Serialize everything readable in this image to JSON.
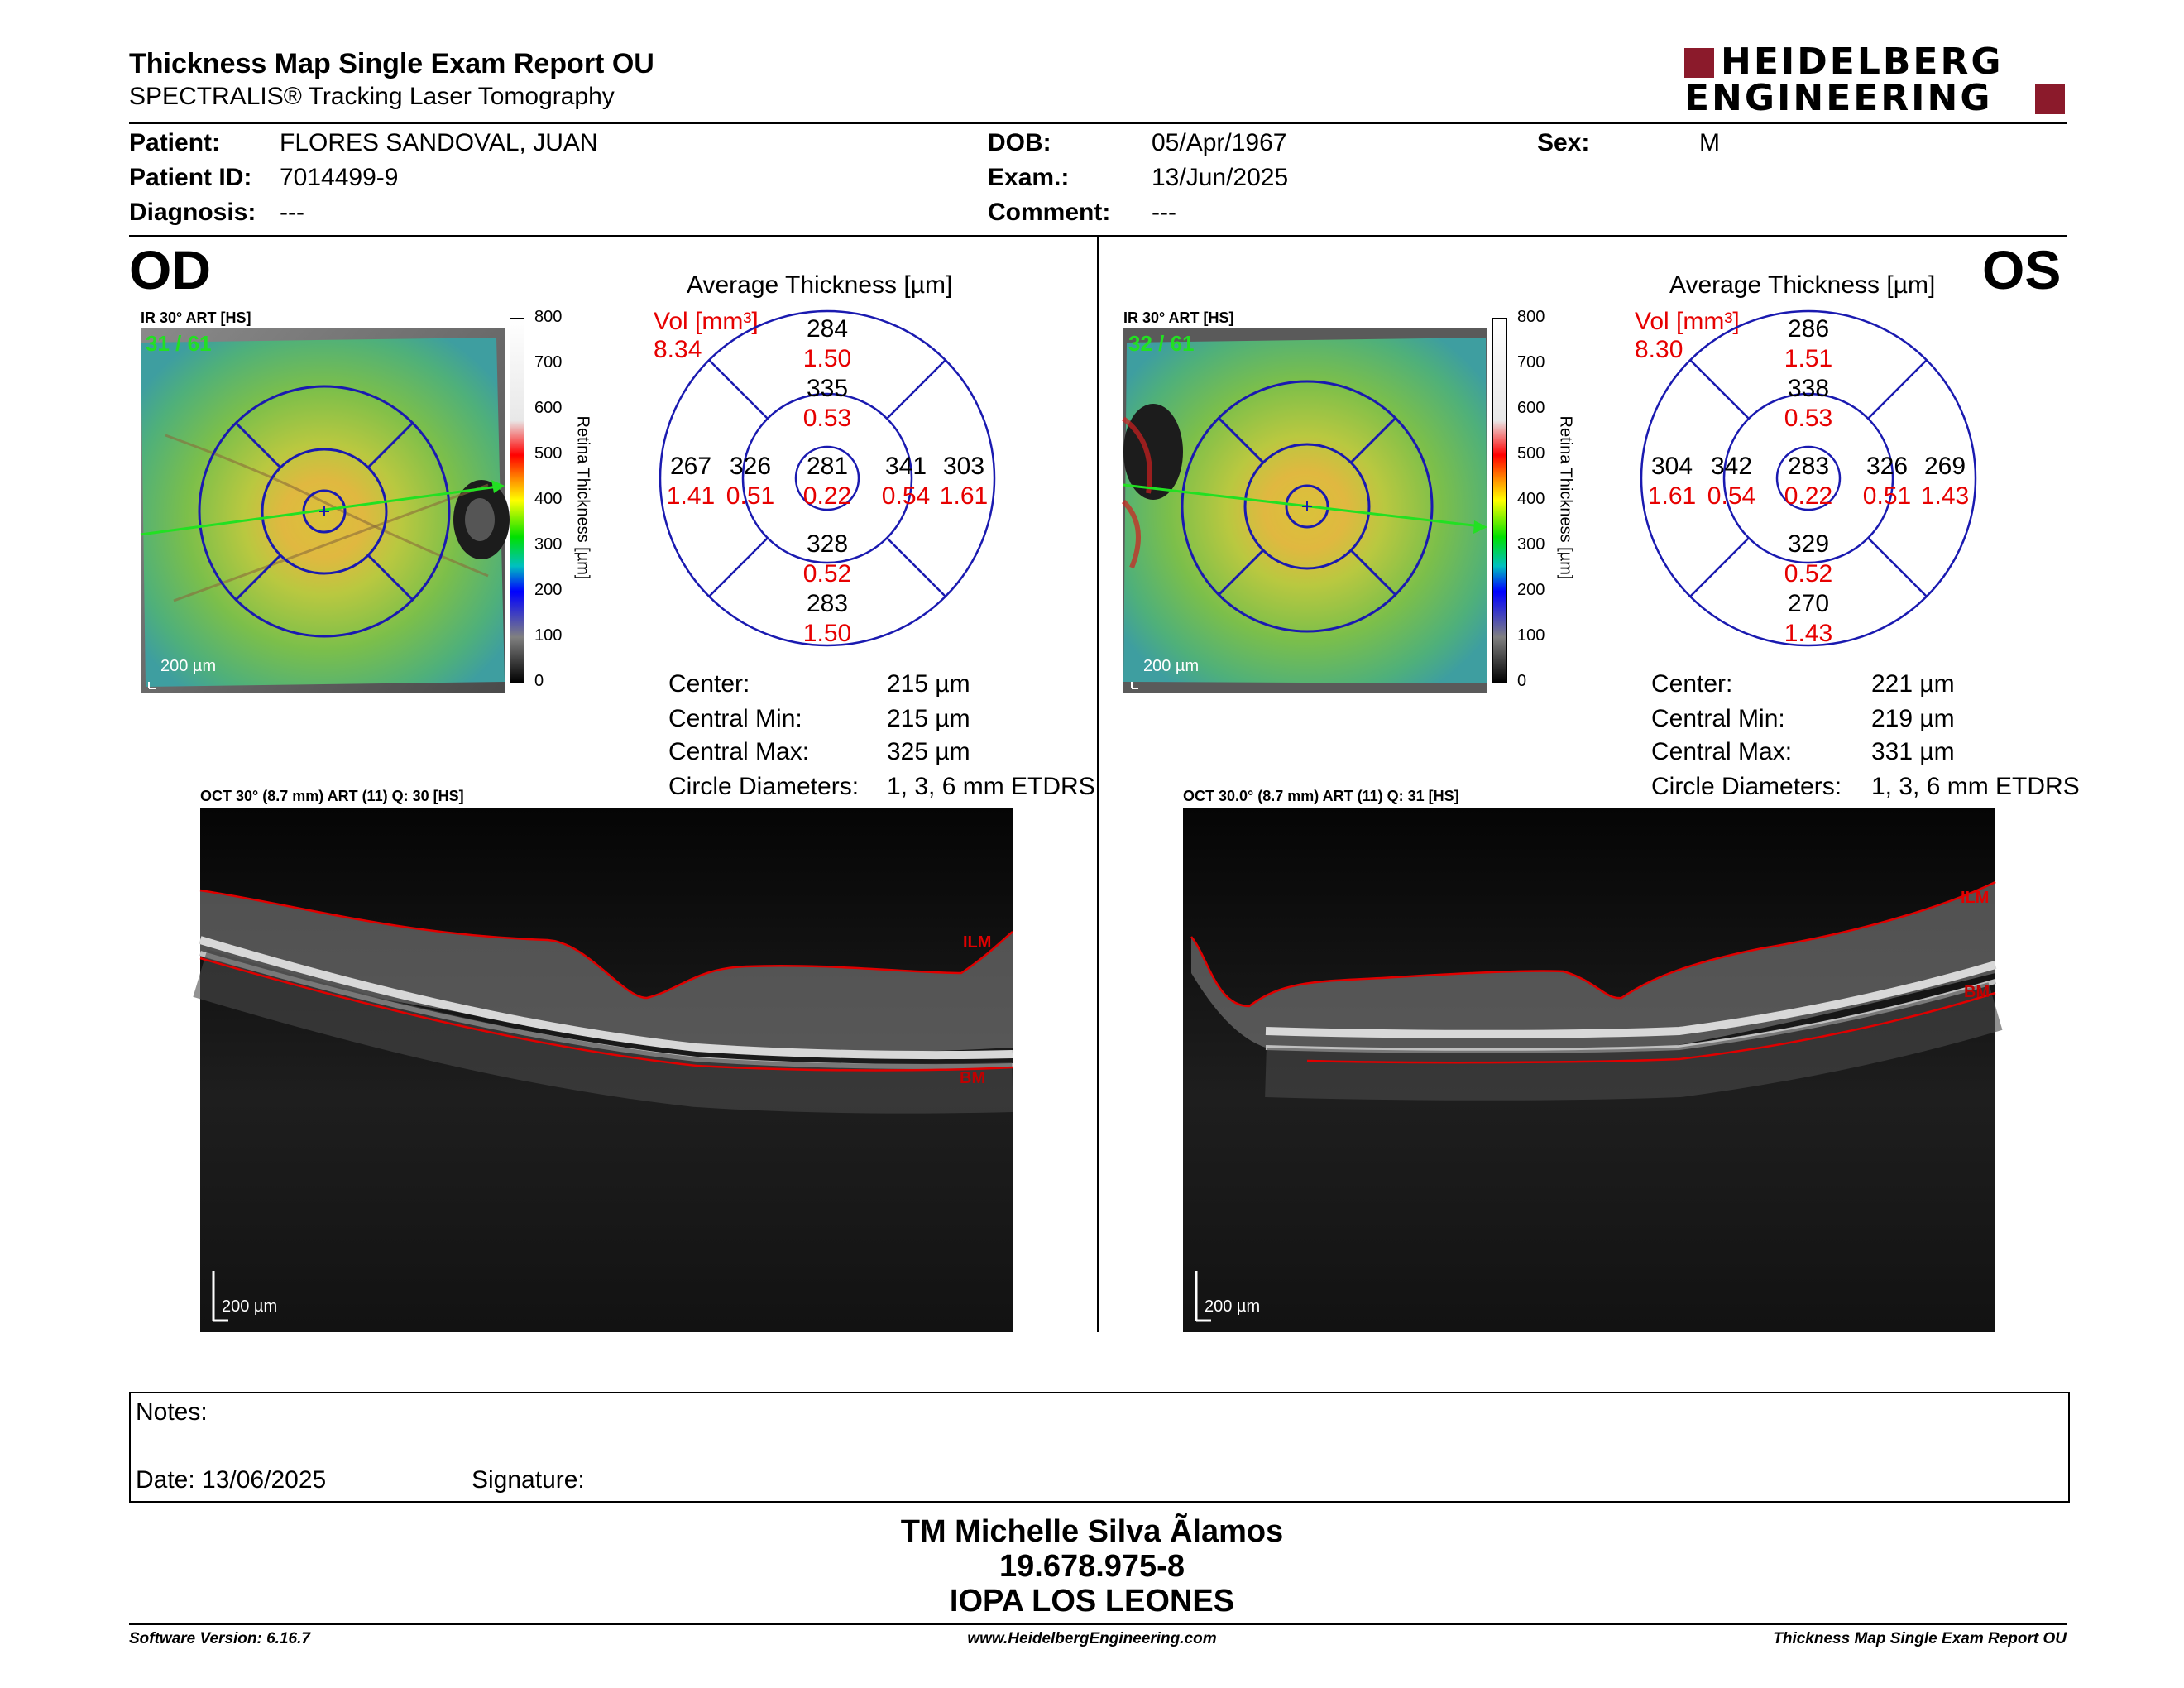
{
  "report": {
    "title": "Thickness Map Single Exam Report OU",
    "subtitle": "SPECTRALIS® Tracking Laser Tomography",
    "logo_top": "HEIDELBERG",
    "logo_bottom": "ENGINEERING"
  },
  "patient": {
    "patient_label": "Patient:",
    "patient_value": "FLORES SANDOVAL, JUAN",
    "id_label": "Patient ID:",
    "id_value": "7014499-9",
    "diag_label": "Diagnosis:",
    "diag_value": "---",
    "dob_label": "DOB:",
    "dob_value": "05/Apr/1967",
    "exam_label": "Exam.:",
    "exam_value": "13/Jun/2025",
    "comment_label": "Comment:",
    "comment_value": "---",
    "sex_label": "Sex:",
    "sex_value": "M"
  },
  "od": {
    "eye_label": "OD",
    "ir_label": "IR 30° ART [HS]",
    "frame": "31 / 61",
    "scale": "200 µm",
    "avg_title": "Average Thickness [µm]",
    "vol_label": "Vol [mm³]",
    "vol_value": "8.34",
    "sectors": {
      "outer_sup": {
        "t": "284",
        "v": "1.50"
      },
      "inner_sup": {
        "t": "335",
        "v": "0.53"
      },
      "outer_left": {
        "t": "267",
        "v": "1.41"
      },
      "inner_left": {
        "t": "326",
        "v": "0.51"
      },
      "center": {
        "t": "281",
        "v": "0.22"
      },
      "inner_right": {
        "t": "341",
        "v": "0.54"
      },
      "outer_right": {
        "t": "303",
        "v": "1.61"
      },
      "inner_inf": {
        "t": "328",
        "v": "0.52"
      },
      "outer_inf": {
        "t": "283",
        "v": "1.50"
      }
    },
    "stats": {
      "center_label": "Center:",
      "center_value": "215 µm",
      "min_label": "Central Min:",
      "min_value": "215 µm",
      "max_label": "Central Max:",
      "max_value": "325 µm",
      "circ_label": "Circle Diameters:",
      "circ_value": "1, 3, 6 mm ETDRS"
    },
    "oct_label": "OCT 30° (8.7 mm) ART (11) Q: 30 [HS]",
    "ilm": "ILM",
    "bm": "BM",
    "oct_scale": "200 µm"
  },
  "os": {
    "eye_label": "OS",
    "ir_label": "IR 30° ART [HS]",
    "frame": "32 / 61",
    "scale": "200 µm",
    "avg_title": "Average Thickness [µm]",
    "vol_label": "Vol [mm³]",
    "vol_value": "8.30",
    "sectors": {
      "outer_sup": {
        "t": "286",
        "v": "1.51"
      },
      "inner_sup": {
        "t": "338",
        "v": "0.53"
      },
      "outer_left": {
        "t": "304",
        "v": "1.61"
      },
      "inner_left": {
        "t": "342",
        "v": "0.54"
      },
      "center": {
        "t": "283",
        "v": "0.22"
      },
      "inner_right": {
        "t": "326",
        "v": "0.51"
      },
      "outer_right": {
        "t": "269",
        "v": "1.43"
      },
      "inner_inf": {
        "t": "329",
        "v": "0.52"
      },
      "outer_inf": {
        "t": "270",
        "v": "1.43"
      }
    },
    "stats": {
      "center_label": "Center:",
      "center_value": "221 µm",
      "min_label": "Central Min:",
      "min_value": "219 µm",
      "max_label": "Central Max:",
      "max_value": "331 µm",
      "circ_label": "Circle Diameters:",
      "circ_value": "1, 3, 6 mm ETDRS"
    },
    "oct_label": "OCT 30.0° (8.7 mm) ART (11) Q: 31 [HS]",
    "ilm": "ILM",
    "bm": "BM",
    "oct_scale": "200 µm"
  },
  "colorbar": {
    "ticks": [
      "800",
      "700",
      "600",
      "500",
      "400",
      "300",
      "200",
      "100",
      "0"
    ],
    "label": "Retina  Thickness [µm]"
  },
  "notes": {
    "notes_label": "Notes:",
    "date_label": "Date: 13/06/2025",
    "signature_label": "Signature:"
  },
  "signer": {
    "name": "TM Michelle Silva Ãlamos",
    "rut": "19.678.975-8",
    "place": "IOPA LOS LEONES"
  },
  "footer": {
    "software": "Software Version: 6.16.7",
    "url": "www.HeidelbergEngineering.com",
    "report": "Thickness Map Single Exam Report OU"
  }
}
